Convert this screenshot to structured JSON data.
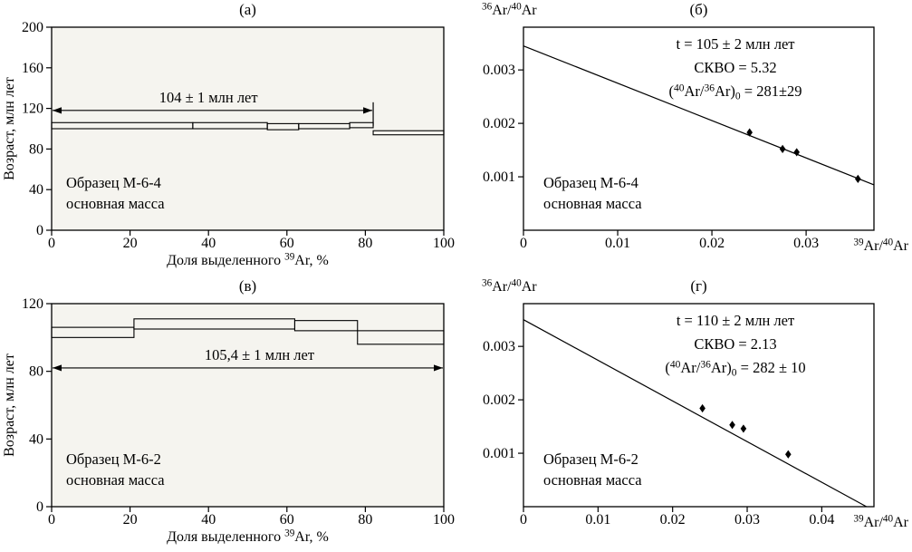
{
  "figure": {
    "ink_color": "#000000",
    "spectrum_plot_bg": "#f5f4ef",
    "isochron_plot_bg": "#ffffff"
  },
  "chart_data": [
    {
      "id": "a",
      "type": "step-area",
      "panel_label": "(а)",
      "ylabel": "Возраст, млн лет",
      "xlabel": "Доля выделенного ^{39}Ar, %",
      "xlim": [
        0,
        100
      ],
      "ylim": [
        0,
        200
      ],
      "xticks": [
        0,
        20,
        40,
        60,
        80,
        100
      ],
      "yticks": [
        0,
        40,
        80,
        120,
        160,
        200
      ],
      "steps": [
        {
          "x_from": 0,
          "x_to": 36,
          "age_min": 100,
          "age_max": 106
        },
        {
          "x_from": 36,
          "x_to": 55,
          "age_min": 100,
          "age_max": 106
        },
        {
          "x_from": 55,
          "x_to": 63,
          "age_min": 99,
          "age_max": 105
        },
        {
          "x_from": 63,
          "x_to": 76,
          "age_min": 100,
          "age_max": 105
        },
        {
          "x_from": 76,
          "x_to": 82,
          "age_min": 101,
          "age_max": 106
        },
        {
          "x_from": 82,
          "x_to": 100,
          "age_min": 94,
          "age_max": 98
        }
      ],
      "plateau": {
        "label": "104 ± 1 млн лет",
        "x_from": 0,
        "x_to": 82,
        "age": 118,
        "label_x": 40,
        "right_end_bar": true
      },
      "sample_label": [
        "Образец М-6-4",
        "основная масса"
      ]
    },
    {
      "id": "b",
      "type": "isochron-scatter",
      "panel_label": "(б)",
      "ylabel": "^{36}Ar/^{40}Ar",
      "xlabel": "^{39}Ar/^{40}Ar",
      "xlim": [
        0,
        0.0372
      ],
      "ylim": [
        0,
        0.0038
      ],
      "xticks": [
        0,
        0.01,
        0.02,
        0.03
      ],
      "yticks": [
        0.001,
        0.002,
        0.003
      ],
      "fit_line": {
        "x1": 0,
        "y1": 0.00345,
        "x2": 0.0372,
        "y2": 0.00085
      },
      "points": [
        {
          "x": 0.024,
          "y": 0.00183
        },
        {
          "x": 0.0275,
          "y": 0.00152
        },
        {
          "x": 0.029,
          "y": 0.00146
        },
        {
          "x": 0.0355,
          "y": 0.00096
        }
      ],
      "stats": [
        "t = 105 ± 2 млн лет",
        "СКВО = 5.32",
        "(^{40}Ar/^{36}Ar)_{0} = 281±29"
      ],
      "sample_label": [
        "Образец М-6-4",
        "основная масса"
      ]
    },
    {
      "id": "v",
      "type": "step-area",
      "panel_label": "(в)",
      "ylabel": "Возраст, млн лет",
      "xlabel": "Доля выделенного ^{39}Ar, %",
      "xlim": [
        0,
        100
      ],
      "ylim": [
        0,
        120
      ],
      "xticks": [
        0,
        20,
        40,
        60,
        80,
        100
      ],
      "yticks": [
        0,
        40,
        80,
        120
      ],
      "steps": [
        {
          "x_from": 0,
          "x_to": 21,
          "age_min": 100,
          "age_max": 106
        },
        {
          "x_from": 21,
          "x_to": 62,
          "age_min": 105,
          "age_max": 111
        },
        {
          "x_from": 62,
          "x_to": 78,
          "age_min": 104,
          "age_max": 110
        },
        {
          "x_from": 78,
          "x_to": 100,
          "age_min": 96,
          "age_max": 104
        }
      ],
      "plateau": {
        "label": "105,4 ± 1 млн лет",
        "x_from": 0,
        "x_to": 100,
        "age": 82,
        "label_x": 53,
        "right_end_bar": false
      },
      "sample_label": [
        "Образец М-6-2",
        "основная масса"
      ]
    },
    {
      "id": "g",
      "type": "isochron-scatter",
      "panel_label": "(г)",
      "ylabel": "^{36}Ar/^{40}Ar",
      "xlabel": "^{39}Ar/^{40}Ar",
      "xlim": [
        0,
        0.047
      ],
      "ylim": [
        0,
        0.0038
      ],
      "xticks": [
        0,
        0.01,
        0.02,
        0.03,
        0.04
      ],
      "yticks": [
        0.001,
        0.002,
        0.003
      ],
      "fit_line": {
        "x1": 0,
        "y1": 0.0035,
        "x2": 0.046,
        "y2": 0
      },
      "points": [
        {
          "x": 0.024,
          "y": 0.00184
        },
        {
          "x": 0.028,
          "y": 0.00153
        },
        {
          "x": 0.0295,
          "y": 0.00146
        },
        {
          "x": 0.0355,
          "y": 0.00098
        }
      ],
      "stats": [
        "t = 110 ± 2 млн лет",
        "СКВО = 2.13",
        "(^{40}Ar/^{36}Ar)_{0} = 282 ± 10"
      ],
      "sample_label": [
        "Образец М-6-2",
        "основная масса"
      ]
    }
  ]
}
